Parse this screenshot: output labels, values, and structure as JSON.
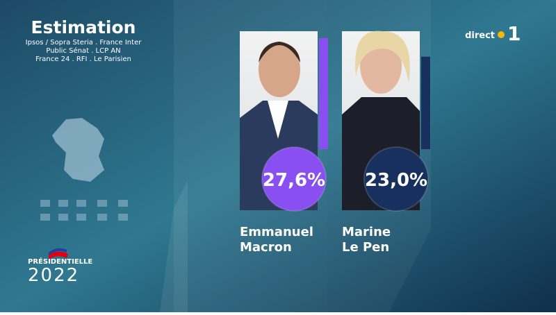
{
  "chart_data": {
    "type": "bar",
    "title": "Estimation",
    "subtitle": [
      "Ipsos / Sopra Steria . France Inter",
      "Public Sénat . LCP AN",
      "France 24 . RFI . Le Parisien"
    ],
    "categories": [
      "Emmanuel Macron",
      "Marine Le Pen"
    ],
    "values": [
      27.6,
      23.0
    ],
    "value_labels": [
      "27,6%",
      "23,0%"
    ],
    "colors": [
      "#8a4ff0",
      "#17305e"
    ]
  },
  "channel": {
    "live": "direct",
    "number": "1"
  },
  "branding": {
    "event": "PRÉSIDENTIELLE",
    "year": "2022"
  }
}
